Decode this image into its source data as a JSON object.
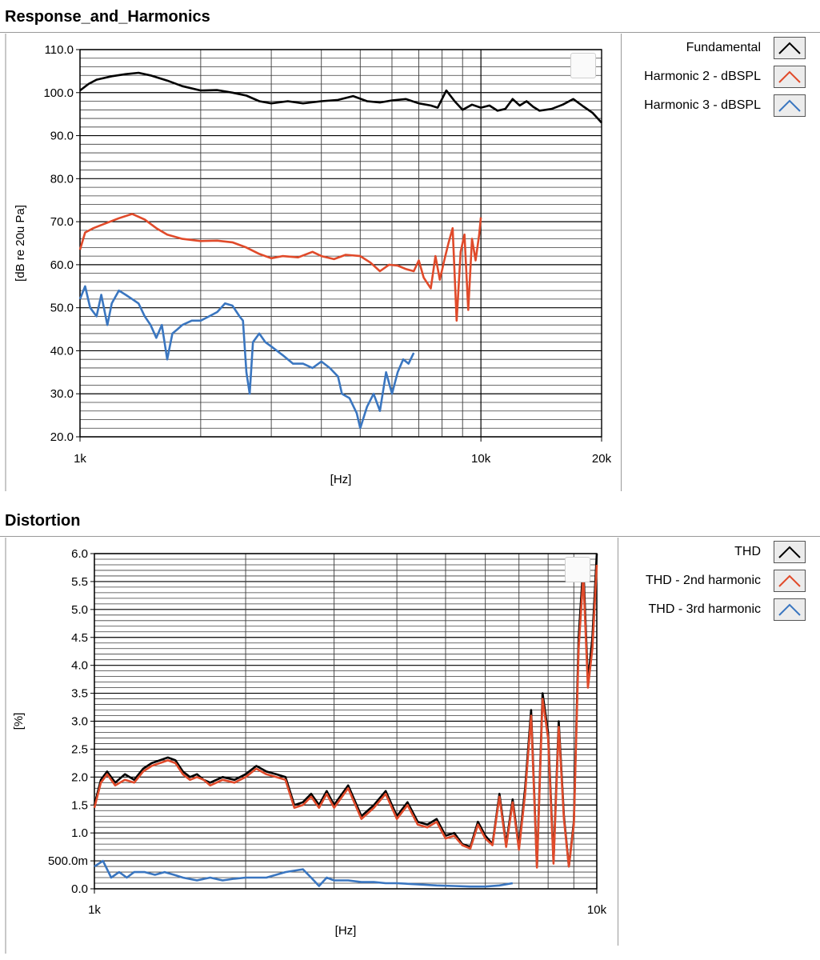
{
  "chart_data": [
    {
      "type": "line",
      "title": "Response_and_Harmonics",
      "xlabel": "[Hz]",
      "ylabel": "[dB re 20u Pa]",
      "xscale": "log",
      "xlim": [
        1000,
        20000
      ],
      "ylim": [
        20,
        110
      ],
      "xticks": [
        {
          "v": 1000,
          "label": "1k"
        },
        {
          "v": 10000,
          "label": "10k"
        },
        {
          "v": 20000,
          "label": "20k"
        }
      ],
      "yticks": [
        {
          "v": 20,
          "label": "20.0"
        },
        {
          "v": 30,
          "label": "30.0"
        },
        {
          "v": 40,
          "label": "40.0"
        },
        {
          "v": 50,
          "label": "50.0"
        },
        {
          "v": 60,
          "label": "60.0"
        },
        {
          "v": 70,
          "label": "70.0"
        },
        {
          "v": 80,
          "label": "80.0"
        },
        {
          "v": 90,
          "label": "90.0"
        },
        {
          "v": 100,
          "label": "100.0"
        },
        {
          "v": 110,
          "label": "110.0"
        }
      ],
      "grid": true,
      "legend_position": "right",
      "series": [
        {
          "name": "Fundamental",
          "color": "#000000",
          "x": [
            1000,
            1050,
            1100,
            1200,
            1300,
            1400,
            1500,
            1650,
            1800,
            2000,
            2200,
            2400,
            2600,
            2800,
            3000,
            3300,
            3600,
            4000,
            4400,
            4800,
            5200,
            5600,
            6000,
            6500,
            7000,
            7500,
            7800,
            8200,
            8600,
            9000,
            9500,
            10000,
            10500,
            11000,
            11500,
            12000,
            12500,
            13000,
            13500,
            14000,
            15000,
            16000,
            17000,
            18000,
            19000,
            20000
          ],
          "y": [
            100.5,
            102,
            103,
            103.8,
            104.3,
            104.6,
            104,
            102.8,
            101.5,
            100.5,
            100.6,
            100,
            99.3,
            98,
            97.5,
            98,
            97.5,
            98,
            98.3,
            99.2,
            98,
            97.7,
            98.2,
            98.5,
            97.5,
            97,
            96.5,
            100.5,
            98,
            96,
            97.2,
            96.5,
            97,
            95.8,
            96.2,
            98.5,
            97,
            98,
            96.7,
            95.8,
            96.2,
            97.2,
            98.5,
            96.8,
            95.3,
            93
          ]
        },
        {
          "name": "Harmonic 2 - dBSPL",
          "color": "#e04a2a",
          "x": [
            1000,
            1030,
            1080,
            1150,
            1250,
            1350,
            1450,
            1550,
            1650,
            1800,
            2000,
            2200,
            2400,
            2600,
            2800,
            3000,
            3200,
            3500,
            3800,
            4000,
            4300,
            4600,
            5000,
            5300,
            5600,
            5900,
            6200,
            6500,
            6800,
            7000,
            7200,
            7500,
            7700,
            7900,
            8100,
            8300,
            8500,
            8700,
            8900,
            9100,
            9300,
            9500,
            9700,
            9900,
            10000
          ],
          "y": [
            63.5,
            67.5,
            68.5,
            69.5,
            70.8,
            71.8,
            70.5,
            68.5,
            67,
            66,
            65.5,
            65.6,
            65.2,
            64,
            62.5,
            61.5,
            62,
            61.7,
            63,
            62,
            61.3,
            62.3,
            62,
            60.5,
            58.5,
            60,
            59.8,
            59,
            58.5,
            61,
            57,
            54.5,
            62,
            56.5,
            61,
            65,
            68.5,
            47,
            63,
            67,
            49.5,
            66,
            61,
            67,
            71
          ]
        },
        {
          "name": "Harmonic 3 - dBSPL",
          "color": "#3a76c0",
          "x": [
            1000,
            1030,
            1060,
            1100,
            1130,
            1170,
            1200,
            1250,
            1300,
            1350,
            1400,
            1450,
            1500,
            1550,
            1600,
            1650,
            1700,
            1750,
            1800,
            1900,
            2000,
            2100,
            2200,
            2300,
            2400,
            2500,
            2550,
            2600,
            2650,
            2700,
            2800,
            2900,
            3000,
            3200,
            3400,
            3600,
            3800,
            4000,
            4200,
            4400,
            4500,
            4700,
            4900,
            5000,
            5200,
            5400,
            5600,
            5800,
            6000,
            6200,
            6400,
            6600,
            6800
          ],
          "y": [
            52,
            55,
            50,
            48,
            53,
            46,
            51,
            54,
            53,
            52,
            51,
            48,
            46,
            43,
            46,
            38,
            44,
            45,
            46,
            47,
            47,
            48,
            49,
            51,
            50.5,
            48,
            47,
            35,
            30,
            42,
            44,
            42,
            41,
            39,
            37,
            37,
            36,
            37.5,
            36,
            34,
            30,
            29,
            25.5,
            22,
            27,
            30,
            26,
            35,
            30,
            35,
            38,
            37,
            39.5
          ]
        }
      ]
    },
    {
      "type": "line",
      "title": "Distortion",
      "xlabel": "[Hz]",
      "ylabel": "[%]",
      "xscale": "log",
      "xlim": [
        1000,
        10000
      ],
      "ylim": [
        0,
        6
      ],
      "xticks": [
        {
          "v": 1000,
          "label": "1k"
        },
        {
          "v": 10000,
          "label": "10k"
        }
      ],
      "yticks": [
        {
          "v": 0,
          "label": "0.0"
        },
        {
          "v": 0.5,
          "label": "500.0m"
        },
        {
          "v": 1,
          "label": "1.0"
        },
        {
          "v": 1.5,
          "label": "1.5"
        },
        {
          "v": 2,
          "label": "2.0"
        },
        {
          "v": 2.5,
          "label": "2.5"
        },
        {
          "v": 3,
          "label": "3.0"
        },
        {
          "v": 3.5,
          "label": "3.5"
        },
        {
          "v": 4,
          "label": "4.0"
        },
        {
          "v": 4.5,
          "label": "4.5"
        },
        {
          "v": 5,
          "label": "5.0"
        },
        {
          "v": 5.5,
          "label": "5.5"
        },
        {
          "v": 6,
          "label": "6.0"
        }
      ],
      "grid": true,
      "legend_position": "right",
      "series": [
        {
          "name": "THD",
          "color": "#000000",
          "x": [
            1000,
            1030,
            1060,
            1100,
            1150,
            1200,
            1250,
            1300,
            1350,
            1400,
            1450,
            1500,
            1550,
            1600,
            1650,
            1700,
            1800,
            1900,
            2000,
            2100,
            2200,
            2300,
            2400,
            2500,
            2600,
            2700,
            2800,
            2900,
            3000,
            3200,
            3400,
            3600,
            3800,
            4000,
            4200,
            4400,
            4600,
            4800,
            5000,
            5200,
            5400,
            5600,
            5800,
            6000,
            6200,
            6400,
            6600,
            6800,
            7000,
            7200,
            7400,
            7600,
            7800,
            8000,
            8200,
            8400,
            8600,
            8800,
            9000,
            9200,
            9400,
            9600,
            9800,
            10000
          ],
          "y": [
            1.5,
            1.95,
            2.1,
            1.9,
            2.05,
            1.95,
            2.15,
            2.25,
            2.3,
            2.35,
            2.3,
            2.1,
            2.0,
            2.05,
            1.95,
            1.9,
            2.0,
            1.95,
            2.05,
            2.2,
            2.1,
            2.05,
            2.0,
            1.5,
            1.55,
            1.7,
            1.5,
            1.75,
            1.5,
            1.85,
            1.3,
            1.5,
            1.75,
            1.3,
            1.55,
            1.2,
            1.15,
            1.25,
            0.95,
            1.0,
            0.8,
            0.75,
            1.2,
            0.95,
            0.8,
            1.7,
            0.8,
            1.6,
            0.75,
            1.8,
            3.2,
            0.4,
            3.5,
            2.8,
            0.5,
            3.0,
            1.3,
            0.4,
            1.2,
            4.5,
            5.8,
            3.7,
            4.5,
            6.0
          ]
        },
        {
          "name": "THD - 2nd harmonic",
          "color": "#e04a2a",
          "x": [
            1000,
            1030,
            1060,
            1100,
            1150,
            1200,
            1250,
            1300,
            1350,
            1400,
            1450,
            1500,
            1550,
            1600,
            1650,
            1700,
            1800,
            1900,
            2000,
            2100,
            2200,
            2300,
            2400,
            2500,
            2600,
            2700,
            2800,
            2900,
            3000,
            3200,
            3400,
            3600,
            3800,
            4000,
            4200,
            4400,
            4600,
            4800,
            5000,
            5200,
            5400,
            5600,
            5800,
            6000,
            6200,
            6400,
            6600,
            6800,
            7000,
            7200,
            7400,
            7600,
            7800,
            8000,
            8200,
            8400,
            8600,
            8800,
            9000,
            9200,
            9400,
            9600,
            9800,
            10000
          ],
          "y": [
            1.45,
            1.9,
            2.05,
            1.85,
            1.95,
            1.9,
            2.1,
            2.2,
            2.25,
            2.3,
            2.25,
            2.05,
            1.95,
            2.0,
            1.95,
            1.85,
            1.95,
            1.9,
            2.0,
            2.15,
            2.05,
            2.0,
            1.95,
            1.45,
            1.5,
            1.65,
            1.45,
            1.7,
            1.45,
            1.8,
            1.25,
            1.45,
            1.7,
            1.25,
            1.5,
            1.15,
            1.1,
            1.2,
            0.9,
            0.95,
            0.78,
            0.72,
            1.15,
            0.9,
            0.78,
            1.65,
            0.75,
            1.55,
            0.7,
            1.7,
            3.1,
            0.38,
            3.4,
            2.7,
            0.45,
            2.9,
            1.25,
            0.4,
            1.15,
            4.3,
            5.6,
            3.6,
            4.3,
            5.8
          ]
        },
        {
          "name": "THD - 3rd harmonic",
          "color": "#3a76c0",
          "x": [
            1000,
            1040,
            1080,
            1120,
            1160,
            1200,
            1260,
            1320,
            1380,
            1440,
            1500,
            1600,
            1700,
            1800,
            1900,
            2000,
            2100,
            2200,
            2400,
            2600,
            2700,
            2800,
            2900,
            3000,
            3200,
            3400,
            3600,
            3800,
            4000,
            4400,
            4800,
            5200,
            5600,
            6000,
            6400,
            6800
          ],
          "y": [
            0.4,
            0.5,
            0.2,
            0.3,
            0.2,
            0.3,
            0.3,
            0.25,
            0.3,
            0.25,
            0.2,
            0.15,
            0.2,
            0.15,
            0.18,
            0.2,
            0.2,
            0.2,
            0.3,
            0.35,
            0.2,
            0.05,
            0.2,
            0.15,
            0.15,
            0.12,
            0.12,
            0.1,
            0.1,
            0.08,
            0.06,
            0.05,
            0.04,
            0.04,
            0.06,
            0.1
          ]
        }
      ]
    }
  ]
}
